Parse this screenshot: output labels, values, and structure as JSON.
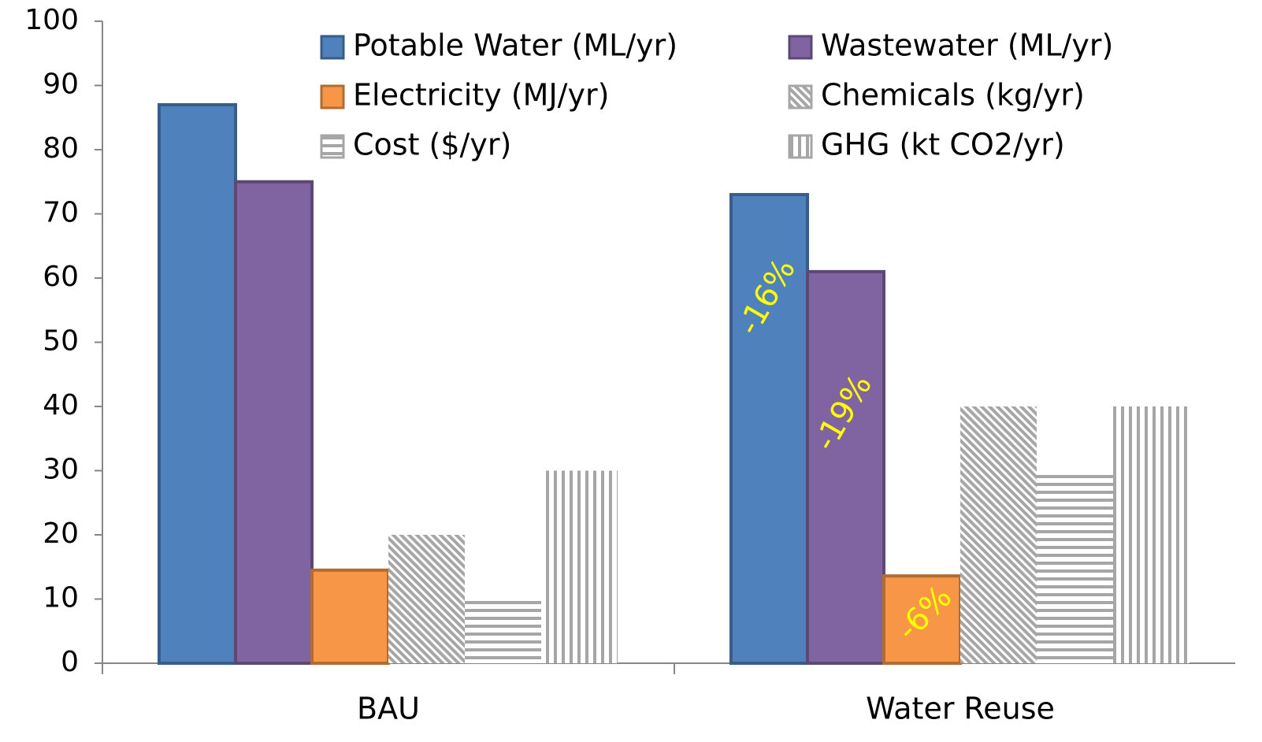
{
  "chart_data": {
    "type": "bar",
    "categories": [
      "BAU",
      "Water Reuse"
    ],
    "series": [
      {
        "name": "Potable Water (ML/yr)",
        "color": "#4f81bd",
        "pattern": "solid",
        "values": [
          87,
          73
        ]
      },
      {
        "name": "Wastewater (ML/yr)",
        "color": "#8064a2",
        "pattern": "solid",
        "values": [
          75,
          61
        ]
      },
      {
        "name": "Electricity (MJ/yr)",
        "color": "#f79646",
        "pattern": "solid",
        "values": [
          14.5,
          13.6
        ]
      },
      {
        "name": "Chemicals (kg/yr)",
        "color": "#a6a6a6",
        "pattern": "diagonal",
        "values": [
          20,
          40
        ]
      },
      {
        "name": "Cost ($/yr)",
        "color": "#a6a6a6",
        "pattern": "horizontal",
        "values": [
          10,
          30
        ]
      },
      {
        "name": "GHG (kt CO2/yr)",
        "color": "#a6a6a6",
        "pattern": "vertical",
        "values": [
          30,
          40
        ]
      }
    ],
    "annotations": [
      "-16%",
      "-19%",
      "-6%"
    ],
    "ylim": [
      0,
      100
    ],
    "yticks": [
      0,
      10,
      20,
      30,
      40,
      50,
      60,
      70,
      80,
      90,
      100
    ],
    "grid": false
  }
}
